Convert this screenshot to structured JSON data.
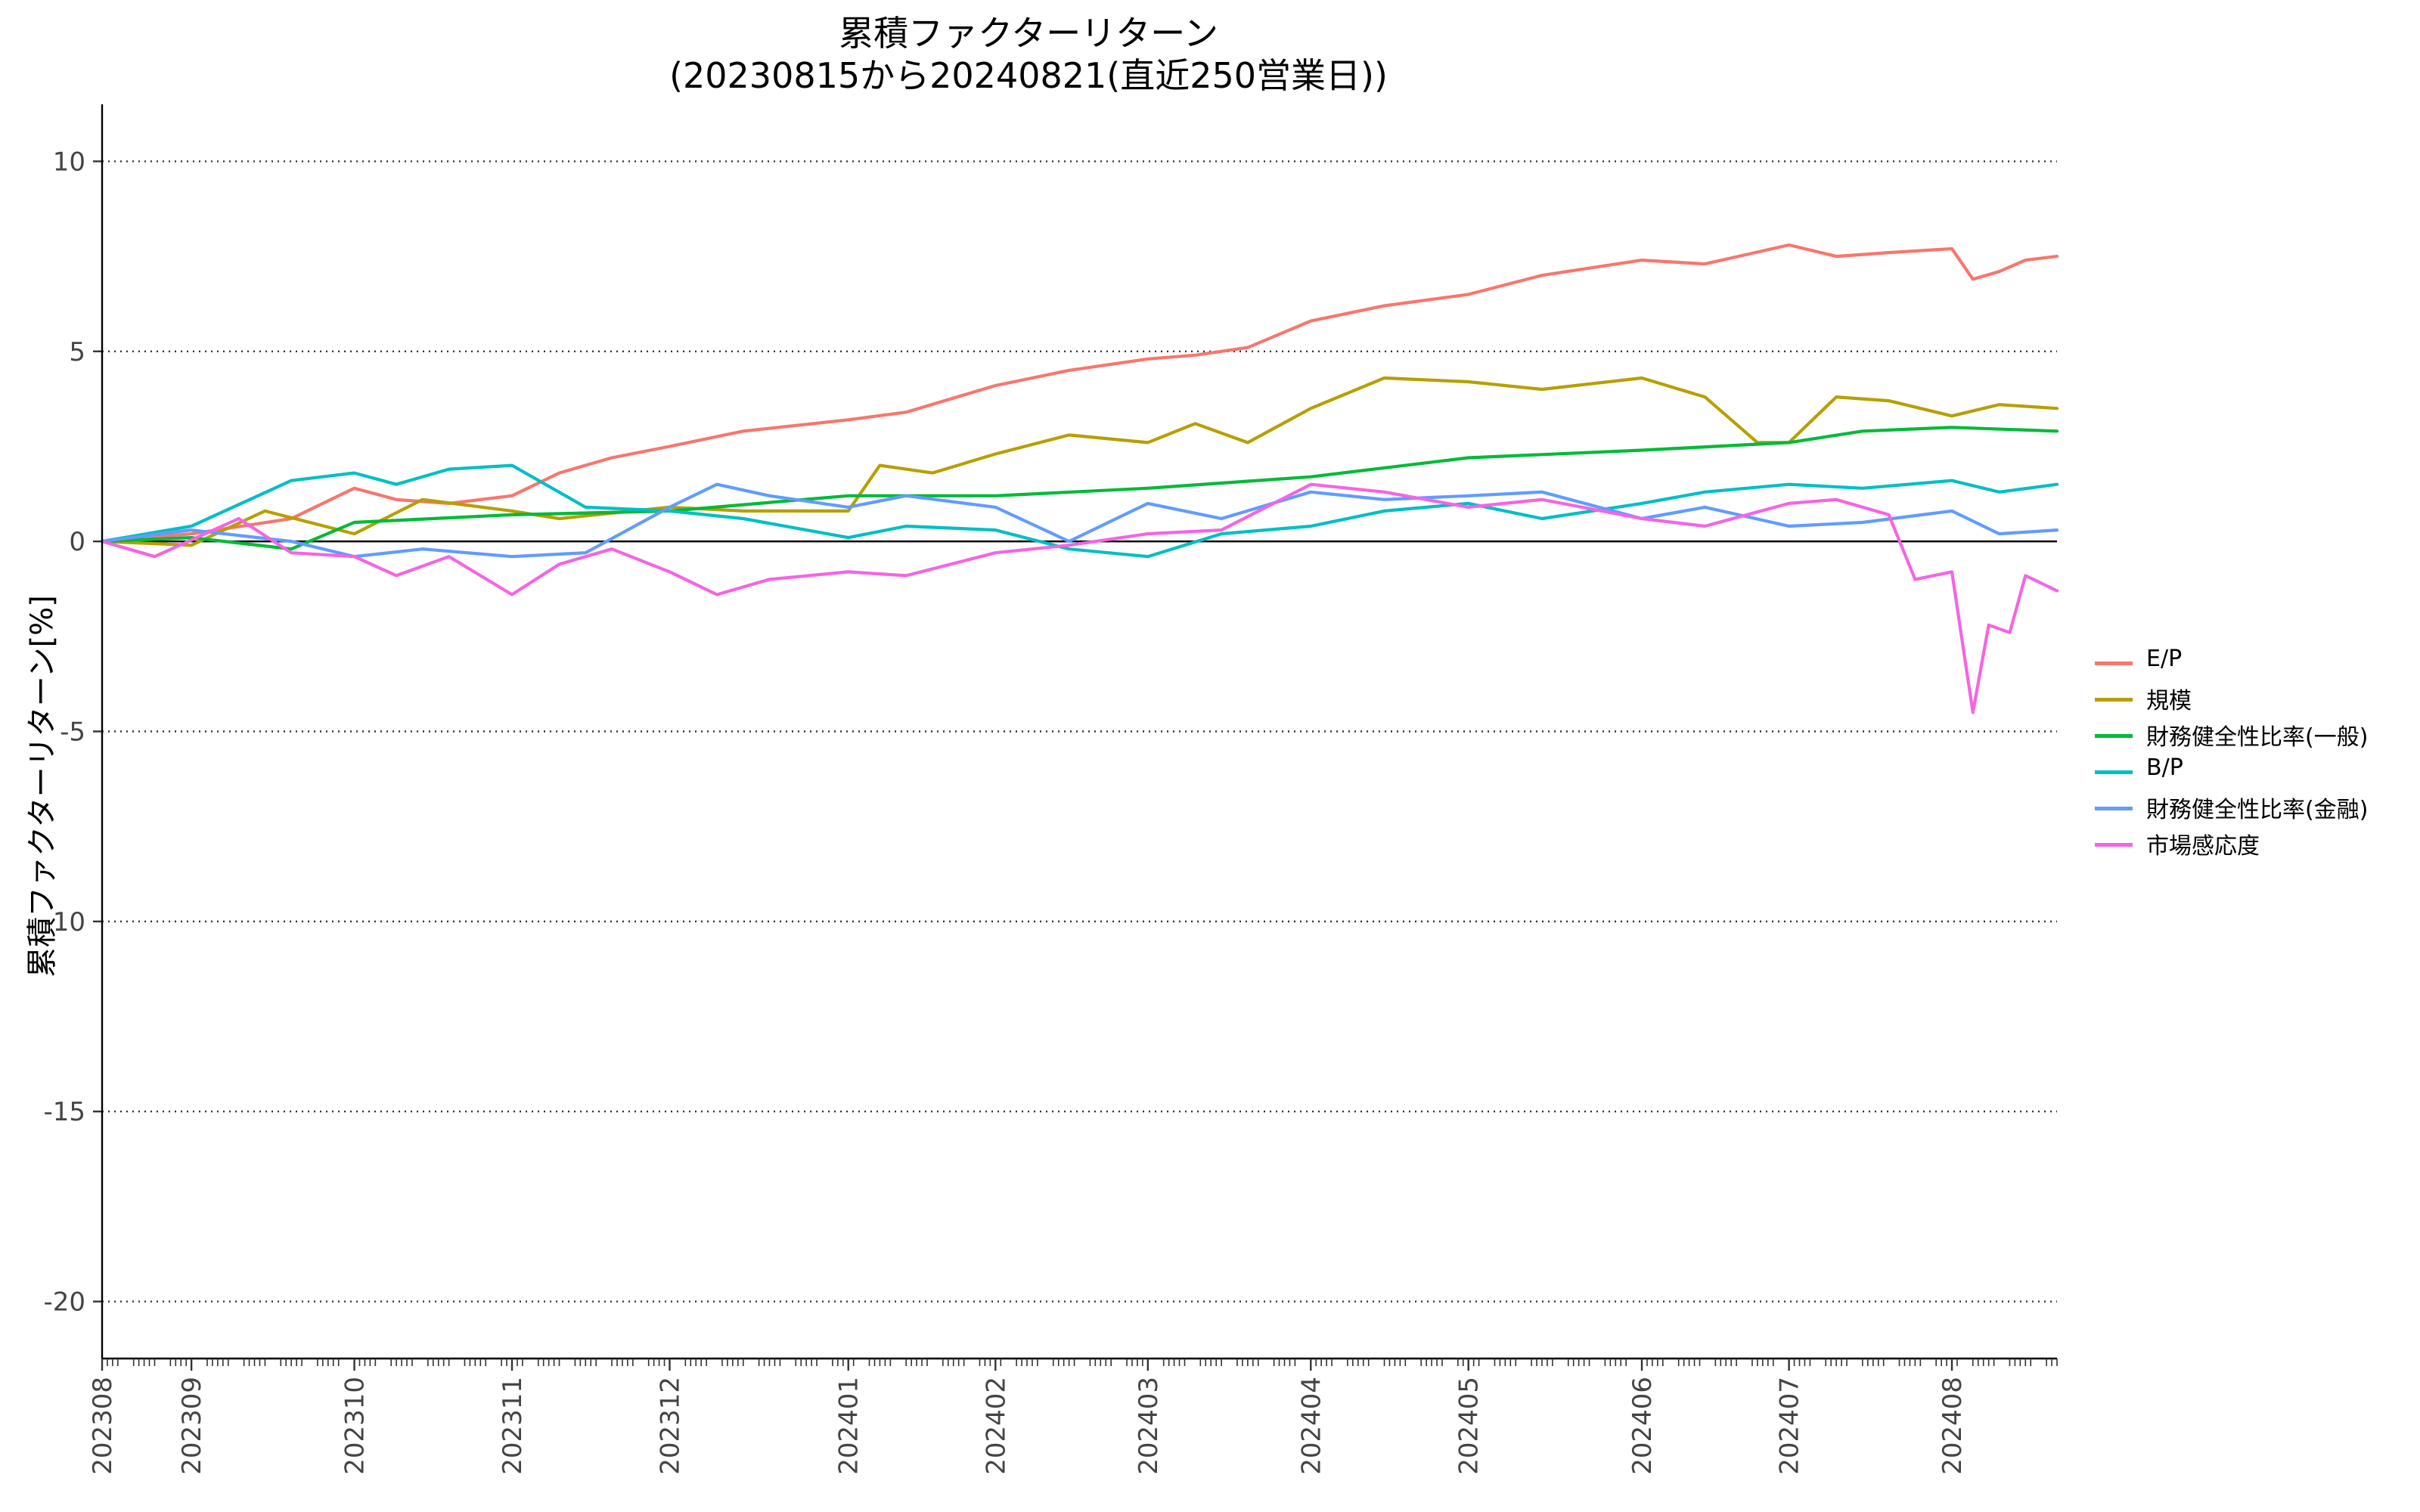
{
  "chart_data": {
    "type": "line",
    "title": "累積ファクターリターン",
    "subtitle": "(20230815から20240821(直近250営業日))",
    "xlabel": "",
    "ylabel": "累積ファクターリターン[%]",
    "ylim": [
      -21.5,
      11.5
    ],
    "yticks": [
      "10",
      "5",
      "0",
      "-5",
      "-10",
      "-15",
      "-20"
    ],
    "grid": "horizontal dotted",
    "legend_position": "right",
    "x_tick_labels": [
      "202308",
      "202309",
      "202310",
      "202311",
      "202312",
      "202401",
      "202402",
      "202403",
      "202404",
      "202405",
      "202406",
      "202407",
      "202408"
    ],
    "x_tick_dates": [
      "2023-08-15",
      "2023-09-01",
      "2023-10-02",
      "2023-11-01",
      "2023-12-01",
      "2024-01-04",
      "2024-02-01",
      "2024-03-01",
      "2024-04-01",
      "2024-05-01",
      "2024-06-03",
      "2024-07-01",
      "2024-08-01"
    ],
    "x_range": [
      "2023-08-15",
      "2024-08-21"
    ],
    "series": [
      {
        "name": "E/P",
        "color": "#F8766D",
        "x": [
          "2023-08-15",
          "2023-09-01",
          "2023-09-20",
          "2023-10-02",
          "2023-10-10",
          "2023-10-20",
          "2023-11-01",
          "2023-11-10",
          "2023-11-20",
          "2023-12-01",
          "2023-12-15",
          "2024-01-04",
          "2024-01-15",
          "2024-02-01",
          "2024-02-15",
          "2024-03-01",
          "2024-03-10",
          "2024-03-20",
          "2024-04-01",
          "2024-04-15",
          "2024-05-01",
          "2024-05-15",
          "2024-06-03",
          "2024-06-15",
          "2024-07-01",
          "2024-07-10",
          "2024-07-20",
          "2024-08-01",
          "2024-08-05",
          "2024-08-10",
          "2024-08-15",
          "2024-08-21"
        ],
        "y": [
          0,
          0.2,
          0.6,
          1.4,
          1.1,
          1.0,
          1.2,
          1.8,
          2.2,
          2.5,
          2.9,
          3.2,
          3.4,
          4.1,
          4.5,
          4.8,
          4.9,
          5.1,
          5.8,
          6.2,
          6.5,
          7.0,
          7.4,
          7.3,
          7.8,
          7.5,
          7.6,
          7.7,
          6.9,
          7.1,
          7.4,
          7.5
        ]
      },
      {
        "name": "規模",
        "color": "#B79F00",
        "x": [
          "2023-08-15",
          "2023-09-01",
          "2023-09-15",
          "2023-10-02",
          "2023-10-15",
          "2023-11-01",
          "2023-11-10",
          "2023-12-01",
          "2023-12-15",
          "2024-01-04",
          "2024-01-10",
          "2024-01-20",
          "2024-02-01",
          "2024-02-15",
          "2024-03-01",
          "2024-03-10",
          "2024-03-20",
          "2024-04-01",
          "2024-04-15",
          "2024-05-01",
          "2024-05-15",
          "2024-06-03",
          "2024-06-15",
          "2024-06-25",
          "2024-07-01",
          "2024-07-10",
          "2024-07-20",
          "2024-08-01",
          "2024-08-10",
          "2024-08-21"
        ],
        "y": [
          0,
          -0.1,
          0.8,
          0.2,
          1.1,
          0.8,
          0.6,
          0.9,
          0.8,
          0.8,
          2.0,
          1.8,
          2.3,
          2.8,
          2.6,
          3.1,
          2.6,
          3.5,
          4.3,
          4.2,
          4.0,
          4.3,
          3.8,
          2.6,
          2.6,
          3.8,
          3.7,
          3.3,
          3.6,
          3.5
        ]
      },
      {
        "name": "財務健全性比率(一般)",
        "color": "#00BA38",
        "x": [
          "2023-08-15",
          "2023-09-01",
          "2023-09-20",
          "2023-10-02",
          "2023-11-01",
          "2023-12-01",
          "2024-01-04",
          "2024-02-01",
          "2024-03-01",
          "2024-04-01",
          "2024-05-01",
          "2024-06-03",
          "2024-07-01",
          "2024-07-15",
          "2024-08-01",
          "2024-08-21"
        ],
        "y": [
          0,
          0.1,
          -0.2,
          0.5,
          0.7,
          0.8,
          1.2,
          1.2,
          1.4,
          1.7,
          2.2,
          2.4,
          2.6,
          2.9,
          3.0,
          2.9
        ]
      },
      {
        "name": "B/P",
        "color": "#00BFC4",
        "x": [
          "2023-08-15",
          "2023-09-01",
          "2023-09-20",
          "2023-10-02",
          "2023-10-10",
          "2023-10-20",
          "2023-11-01",
          "2023-11-15",
          "2023-12-01",
          "2023-12-15",
          "2024-01-04",
          "2024-01-15",
          "2024-02-01",
          "2024-02-15",
          "2024-03-01",
          "2024-03-15",
          "2024-04-01",
          "2024-04-15",
          "2024-05-01",
          "2024-05-15",
          "2024-06-03",
          "2024-06-15",
          "2024-07-01",
          "2024-07-15",
          "2024-08-01",
          "2024-08-10",
          "2024-08-21"
        ],
        "y": [
          0,
          0.4,
          1.6,
          1.8,
          1.5,
          1.9,
          2.0,
          0.9,
          0.8,
          0.6,
          0.1,
          0.4,
          0.3,
          -0.2,
          -0.4,
          0.2,
          0.4,
          0.8,
          1.0,
          0.6,
          1.0,
          1.3,
          1.5,
          1.4,
          1.6,
          1.3,
          1.5
        ]
      },
      {
        "name": "財務健全性比率(金融)",
        "color": "#619CFF",
        "x": [
          "2023-08-15",
          "2023-09-01",
          "2023-09-20",
          "2023-10-02",
          "2023-10-15",
          "2023-11-01",
          "2023-11-15",
          "2023-12-01",
          "2023-12-10",
          "2023-12-20",
          "2024-01-04",
          "2024-01-15",
          "2024-02-01",
          "2024-02-15",
          "2024-03-01",
          "2024-03-15",
          "2024-04-01",
          "2024-04-15",
          "2024-05-01",
          "2024-05-15",
          "2024-06-03",
          "2024-06-15",
          "2024-07-01",
          "2024-07-15",
          "2024-08-01",
          "2024-08-10",
          "2024-08-21"
        ],
        "y": [
          0,
          0.3,
          0.0,
          -0.4,
          -0.2,
          -0.4,
          -0.3,
          0.9,
          1.5,
          1.2,
          0.9,
          1.2,
          0.9,
          0.0,
          1.0,
          0.6,
          1.3,
          1.1,
          1.2,
          1.3,
          0.6,
          0.9,
          0.4,
          0.5,
          0.8,
          0.2,
          0.3
        ]
      },
      {
        "name": "市場感応度",
        "color": "#F564E3",
        "x": [
          "2023-08-15",
          "2023-08-25",
          "2023-09-10",
          "2023-09-20",
          "2023-10-02",
          "2023-10-10",
          "2023-10-20",
          "2023-11-01",
          "2023-11-10",
          "2023-11-20",
          "2023-12-01",
          "2023-12-10",
          "2023-12-20",
          "2024-01-04",
          "2024-01-15",
          "2024-02-01",
          "2024-02-15",
          "2024-03-01",
          "2024-03-15",
          "2024-04-01",
          "2024-04-15",
          "2024-05-01",
          "2024-05-15",
          "2024-06-03",
          "2024-06-15",
          "2024-07-01",
          "2024-07-10",
          "2024-07-20",
          "2024-07-25",
          "2024-08-01",
          "2024-08-05",
          "2024-08-08",
          "2024-08-12",
          "2024-08-15",
          "2024-08-21"
        ],
        "y": [
          0,
          -0.4,
          0.6,
          -0.3,
          -0.4,
          -0.9,
          -0.4,
          -1.4,
          -0.6,
          -0.2,
          -0.8,
          -1.4,
          -1.0,
          -0.8,
          -0.9,
          -0.3,
          -0.1,
          0.2,
          0.3,
          1.5,
          1.3,
          0.9,
          1.1,
          0.6,
          0.4,
          1.0,
          1.1,
          0.7,
          -1.0,
          -0.8,
          -4.5,
          -2.2,
          -2.4,
          -0.9,
          -1.3
        ]
      }
    ]
  }
}
